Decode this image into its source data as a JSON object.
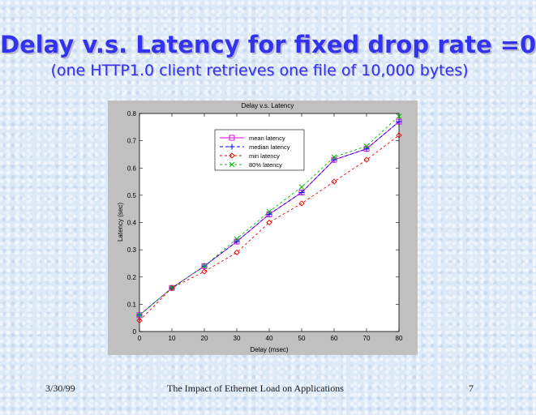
{
  "slide": {
    "title": "Delay v.s. Latency for fixed drop rate =0",
    "subtitle": "(one HTTP1.0 client retrieves one file of 10,000 bytes)",
    "footer_date": "3/30/99",
    "footer_center": "The Impact of Ethernet Load on Applications",
    "page_number": "7"
  },
  "chart_data": {
    "type": "line",
    "title": "Delay v.s. Latency",
    "xlabel": "Delay (msec)",
    "ylabel": "Latency (sec)",
    "xlim": [
      0,
      80
    ],
    "ylim": [
      0,
      0.8
    ],
    "xticks": [
      "0",
      "10",
      "20",
      "30",
      "40",
      "50",
      "60",
      "70",
      "80"
    ],
    "yticks": [
      "0",
      "0.1",
      "0.2",
      "0.3",
      "0.4",
      "0.5",
      "0.6",
      "0.7",
      "0.8"
    ],
    "x": [
      0,
      10,
      20,
      30,
      40,
      50,
      60,
      70,
      80
    ],
    "series": [
      {
        "name": "mean latency",
        "color": "#dd00dd",
        "marker": "square",
        "dash": "",
        "values": [
          0.06,
          0.16,
          0.24,
          0.33,
          0.43,
          0.51,
          0.63,
          0.67,
          0.77
        ]
      },
      {
        "name": "median latency",
        "color": "#0000ee",
        "marker": "plus",
        "dash": "4,3",
        "values": [
          0.06,
          0.16,
          0.24,
          0.33,
          0.43,
          0.51,
          0.63,
          0.67,
          0.77
        ]
      },
      {
        "name": "min latency",
        "color": "#ee0000",
        "marker": "diamond",
        "dash": "3,3",
        "values": [
          0.04,
          0.16,
          0.22,
          0.29,
          0.4,
          0.47,
          0.55,
          0.63,
          0.72
        ]
      },
      {
        "name": "80% latency",
        "color": "#00bb00",
        "marker": "x",
        "dash": "3,3",
        "values": [
          0.06,
          0.16,
          0.24,
          0.34,
          0.44,
          0.53,
          0.64,
          0.68,
          0.79
        ]
      }
    ],
    "grid": false,
    "legend": "top-center"
  }
}
